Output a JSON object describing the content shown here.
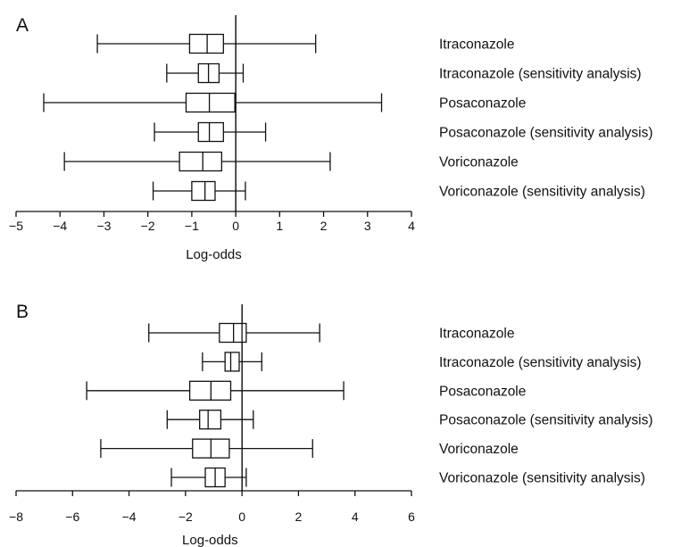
{
  "chart_data": [
    {
      "type": "box",
      "panel_label": "A",
      "xlabel": "Log-odds",
      "xlim": [
        -5,
        4
      ],
      "xticks": [
        -5,
        -4,
        -3,
        -2,
        -1,
        0,
        1,
        2,
        3,
        4
      ],
      "reference_line": 0,
      "grid": false,
      "categories": [
        "Itraconazole",
        "Itraconazole (sensitivity analysis)",
        "Posaconazole",
        "Posaconazole (sensitivity analysis)",
        "Voriconazole",
        "Voriconazole (sensitivity analysis)"
      ],
      "boxes": [
        {
          "whisker_low": -3.15,
          "q1": -1.05,
          "median": -0.65,
          "q3": -0.28,
          "whisker_high": 1.82
        },
        {
          "whisker_low": -1.57,
          "q1": -0.85,
          "median": -0.62,
          "q3": -0.38,
          "whisker_high": 0.17
        },
        {
          "whisker_low": -4.37,
          "q1": -1.13,
          "median": -0.6,
          "q3": -0.02,
          "whisker_high": 3.32
        },
        {
          "whisker_low": -1.85,
          "q1": -0.85,
          "median": -0.6,
          "q3": -0.28,
          "whisker_high": 0.68
        },
        {
          "whisker_low": -3.9,
          "q1": -1.28,
          "median": -0.75,
          "q3": -0.32,
          "whisker_high": 2.15
        },
        {
          "whisker_low": -1.88,
          "q1": -1.0,
          "median": -0.7,
          "q3": -0.47,
          "whisker_high": 0.22
        }
      ]
    },
    {
      "type": "box",
      "panel_label": "B",
      "xlabel": "Log-odds",
      "xlim": [
        -8,
        6
      ],
      "xticks": [
        -8,
        -6,
        -4,
        -2,
        0,
        2,
        4,
        6
      ],
      "reference_line": 0,
      "grid": false,
      "categories": [
        "Itraconazole",
        "Itraconazole (sensitivity analysis)",
        "Posaconazole",
        "Posaconazole (sensitivity analysis)",
        "Voriconazole",
        "Voriconazole (sensitivity analysis)"
      ],
      "boxes": [
        {
          "whisker_low": -3.3,
          "q1": -0.8,
          "median": -0.3,
          "q3": 0.15,
          "whisker_high": 2.75
        },
        {
          "whisker_low": -1.4,
          "q1": -0.6,
          "median": -0.4,
          "q3": -0.1,
          "whisker_high": 0.7
        },
        {
          "whisker_low": -5.5,
          "q1": -1.85,
          "median": -1.1,
          "q3": -0.4,
          "whisker_high": 3.6
        },
        {
          "whisker_low": -2.65,
          "q1": -1.5,
          "median": -1.2,
          "q3": -0.75,
          "whisker_high": 0.4
        },
        {
          "whisker_low": -5.0,
          "q1": -1.75,
          "median": -1.1,
          "q3": -0.45,
          "whisker_high": 2.5
        },
        {
          "whisker_low": -2.5,
          "q1": -1.3,
          "median": -0.95,
          "q3": -0.6,
          "whisker_high": 0.15
        }
      ]
    }
  ]
}
